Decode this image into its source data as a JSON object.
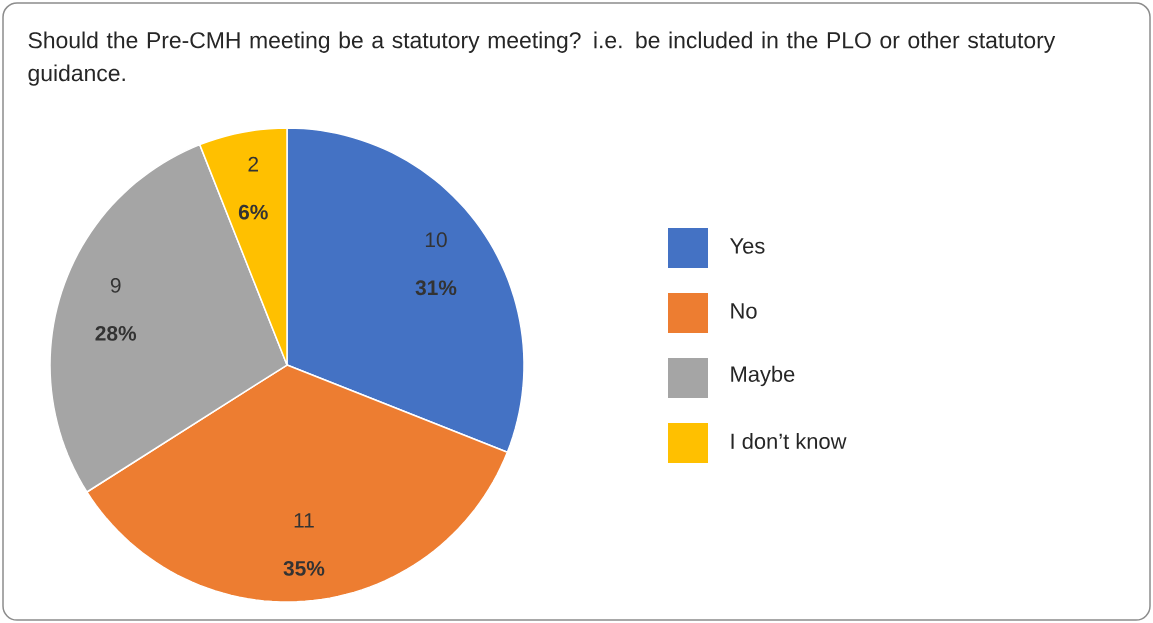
{
  "chart_data": {
    "type": "pie",
    "title": "Should the Pre-CMH meeting be a statutory meeting? i.e. be included in the PLO or other statutory guidance.",
    "categories": [
      "Yes",
      "No",
      "Maybe",
      "I don’t know"
    ],
    "values": [
      31,
      35,
      28,
      6
    ],
    "value_labels": [
      "31%",
      "35%",
      "28%",
      "6%"
    ],
    "annotations": [
      "10",
      "11",
      "9",
      "2"
    ],
    "colors": [
      "#4472c4",
      "#ed7d31",
      "#a5a5a5",
      "#ffc000"
    ],
    "legend": "right"
  }
}
